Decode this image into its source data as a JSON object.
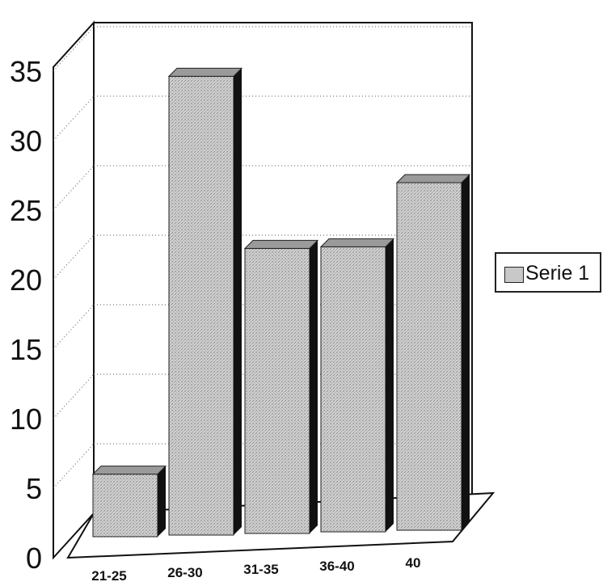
{
  "chart_data": {
    "type": "bar",
    "categories": [
      "21-25",
      "26-30",
      "31-35",
      "36-40",
      "40"
    ],
    "series": [
      {
        "name": "Serie 1",
        "values": [
          4.5,
          33,
          20.5,
          20.5,
          25
        ]
      }
    ],
    "title": "",
    "xlabel": "",
    "ylabel": "",
    "ylim": [
      0,
      35
    ],
    "yticks": [
      "0",
      "5",
      "10",
      "15",
      "20",
      "25",
      "30",
      "35"
    ],
    "grid": true,
    "legend_position": "right",
    "bar_color": "#c8c8c8",
    "bar_side_color": "#111111",
    "bar_top_color": "#9a9a9a"
  }
}
